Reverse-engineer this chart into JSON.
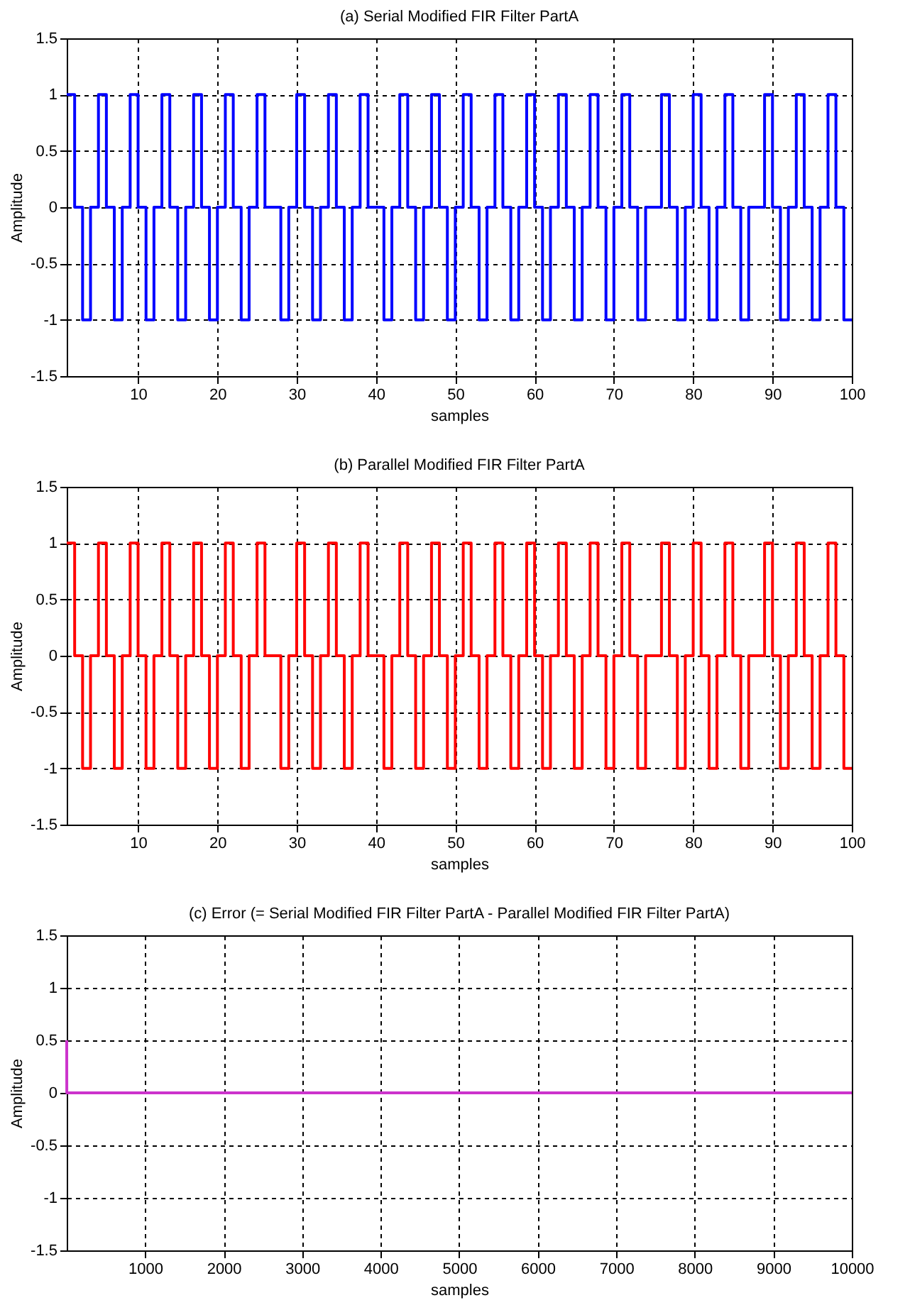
{
  "chart_data": [
    {
      "type": "step",
      "title": "(a) Serial Modified FIR Filter PartA",
      "xlabel": "samples",
      "ylabel": "Amplitude",
      "x": [
        1,
        2,
        3,
        4,
        5,
        6,
        7,
        8,
        9,
        10,
        11,
        12,
        13,
        14,
        15,
        16,
        17,
        18,
        19,
        20,
        21,
        22,
        23,
        24,
        25,
        26,
        27,
        28,
        29,
        30,
        31,
        32,
        33,
        34,
        35,
        36,
        37,
        38,
        39,
        40,
        41,
        42,
        43,
        44,
        45,
        46,
        47,
        48,
        49,
        50,
        51,
        52,
        53,
        54,
        55,
        56,
        57,
        58,
        59,
        60,
        61,
        62,
        63,
        64,
        65,
        66,
        67,
        68,
        69,
        70,
        71,
        72,
        73,
        74,
        75,
        76,
        77,
        78,
        79,
        80,
        81,
        82,
        83,
        84,
        85,
        86,
        87,
        88,
        89,
        90,
        91,
        92,
        93,
        94,
        95,
        96,
        97,
        98,
        99,
        100
      ],
      "series": [
        {
          "color": "#0000ff",
          "values": [
            1,
            0,
            -1,
            0,
            1,
            0,
            -1,
            0,
            1,
            0,
            -1,
            0,
            1,
            0,
            -1,
            0,
            1,
            0,
            -1,
            0,
            1,
            0,
            -1,
            0,
            1,
            0,
            0,
            -1,
            0,
            1,
            0,
            -1,
            0,
            1,
            0,
            -1,
            0,
            1,
            0,
            0,
            -1,
            0,
            1,
            0,
            -1,
            0,
            1,
            0,
            -1,
            0,
            1,
            0,
            -1,
            0,
            1,
            0,
            -1,
            0,
            1,
            0,
            -1,
            0,
            1,
            0,
            -1,
            0,
            1,
            0,
            -1,
            0,
            1,
            0,
            -1,
            0,
            0,
            1,
            0,
            -1,
            0,
            1,
            0,
            -1,
            0,
            1,
            0,
            -1,
            0,
            0,
            1,
            0,
            -1,
            0,
            1,
            0,
            -1,
            0,
            1,
            0,
            -1,
            -1
          ]
        }
      ],
      "xlim": [
        1,
        100
      ],
      "xticks": [
        10,
        20,
        30,
        40,
        50,
        60,
        70,
        80,
        90,
        100
      ],
      "ylim": [
        -1.5,
        1.5
      ],
      "yticks": [
        -1.5,
        -1,
        -0.5,
        0,
        0.5,
        1,
        1.5
      ],
      "grid": true
    },
    {
      "type": "step",
      "title": "(b) Parallel Modified FIR Filter PartA",
      "xlabel": "samples",
      "ylabel": "Amplitude",
      "x": [
        1,
        2,
        3,
        4,
        5,
        6,
        7,
        8,
        9,
        10,
        11,
        12,
        13,
        14,
        15,
        16,
        17,
        18,
        19,
        20,
        21,
        22,
        23,
        24,
        25,
        26,
        27,
        28,
        29,
        30,
        31,
        32,
        33,
        34,
        35,
        36,
        37,
        38,
        39,
        40,
        41,
        42,
        43,
        44,
        45,
        46,
        47,
        48,
        49,
        50,
        51,
        52,
        53,
        54,
        55,
        56,
        57,
        58,
        59,
        60,
        61,
        62,
        63,
        64,
        65,
        66,
        67,
        68,
        69,
        70,
        71,
        72,
        73,
        74,
        75,
        76,
        77,
        78,
        79,
        80,
        81,
        82,
        83,
        84,
        85,
        86,
        87,
        88,
        89,
        90,
        91,
        92,
        93,
        94,
        95,
        96,
        97,
        98,
        99,
        100
      ],
      "series": [
        {
          "color": "#ff0000",
          "values": [
            1,
            0,
            -1,
            0,
            1,
            0,
            -1,
            0,
            1,
            0,
            -1,
            0,
            1,
            0,
            -1,
            0,
            1,
            0,
            -1,
            0,
            1,
            0,
            -1,
            0,
            1,
            0,
            0,
            -1,
            0,
            1,
            0,
            -1,
            0,
            1,
            0,
            -1,
            0,
            1,
            0,
            0,
            -1,
            0,
            1,
            0,
            -1,
            0,
            1,
            0,
            -1,
            0,
            1,
            0,
            -1,
            0,
            1,
            0,
            -1,
            0,
            1,
            0,
            -1,
            0,
            1,
            0,
            -1,
            0,
            1,
            0,
            -1,
            0,
            1,
            0,
            -1,
            0,
            0,
            1,
            0,
            -1,
            0,
            1,
            0,
            -1,
            0,
            1,
            0,
            -1,
            0,
            0,
            1,
            0,
            -1,
            0,
            1,
            0,
            -1,
            0,
            1,
            0,
            -1,
            -1
          ]
        }
      ],
      "xlim": [
        1,
        100
      ],
      "xticks": [
        10,
        20,
        30,
        40,
        50,
        60,
        70,
        80,
        90,
        100
      ],
      "ylim": [
        -1.5,
        1.5
      ],
      "yticks": [
        -1.5,
        -1,
        -0.5,
        0,
        0.5,
        1,
        1.5
      ],
      "grid": true
    },
    {
      "type": "line",
      "title": "(c) Error (= Serial Modified FIR Filter PartA - Parallel Modified FIR Filter PartA)",
      "xlabel": "samples",
      "ylabel": "Amplitude",
      "x": [
        1,
        2,
        10000
      ],
      "series": [
        {
          "color": "#cc33cc",
          "values": [
            0.5,
            0,
            0
          ]
        }
      ],
      "xlim": [
        1,
        10000
      ],
      "xticks": [
        1000,
        2000,
        3000,
        4000,
        5000,
        6000,
        7000,
        8000,
        9000,
        10000
      ],
      "ylim": [
        -1.5,
        1.5
      ],
      "yticks": [
        -1.5,
        -1,
        -0.5,
        0,
        0.5,
        1,
        1.5
      ],
      "grid": true
    }
  ]
}
